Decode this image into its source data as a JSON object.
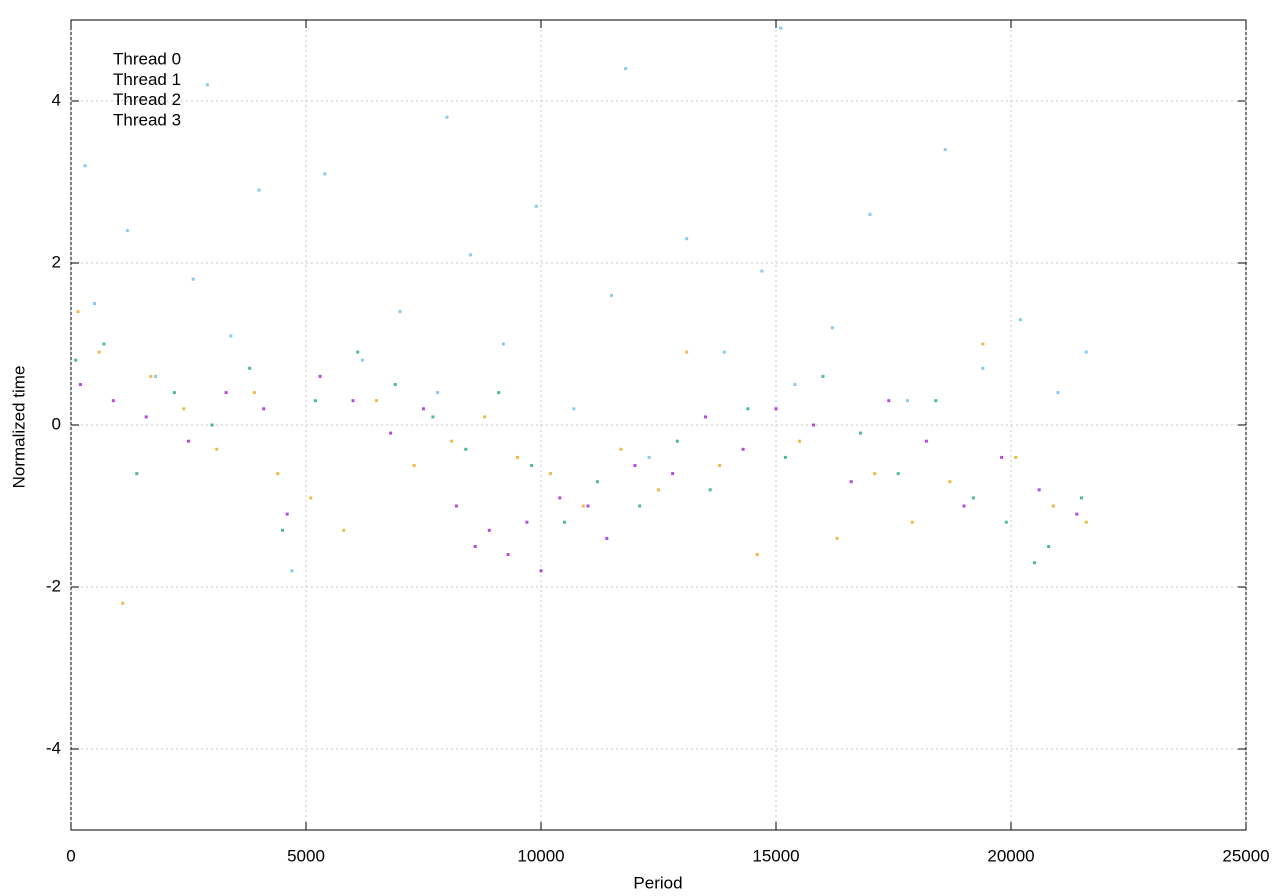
{
  "chart_data": {
    "type": "scatter",
    "x_label": "Period",
    "y_label": "Normalized time",
    "xlim": [
      0,
      25000
    ],
    "ylim": [
      -5,
      5
    ],
    "xticks": [
      0,
      5000,
      10000,
      15000,
      20000,
      25000
    ],
    "yticks": [
      -4,
      -2,
      0,
      2,
      4
    ],
    "grid": true,
    "legend": "top-left",
    "series": [
      {
        "name": "Thread 0",
        "color": "#9400d3",
        "x": [
          200,
          900,
          1600,
          2500,
          3300,
          4100,
          4600,
          5300,
          6000,
          6800,
          7500,
          8200,
          8600,
          8900,
          9300,
          9700,
          10000,
          10400,
          11000,
          11400,
          12000,
          12800,
          13500,
          14300,
          15000,
          15800,
          16600,
          17400,
          18200,
          19000,
          19800,
          20600,
          21400
        ],
        "y": [
          0.5,
          0.3,
          0.1,
          -0.2,
          0.4,
          0.2,
          -1.1,
          0.6,
          0.3,
          -0.1,
          0.2,
          -1.0,
          -1.5,
          -1.3,
          -1.6,
          -1.2,
          -1.8,
          -0.9,
          -1.0,
          -1.4,
          -0.5,
          -0.6,
          0.1,
          -0.3,
          0.2,
          0.0,
          -0.7,
          0.3,
          -0.2,
          -1.0,
          -0.4,
          -0.8,
          -1.1
        ]
      },
      {
        "name": "Thread 1",
        "color": "#009e73",
        "x": [
          100,
          700,
          1400,
          2200,
          3000,
          3800,
          4500,
          5200,
          6100,
          6900,
          7700,
          8400,
          9100,
          9800,
          10500,
          11200,
          12100,
          12900,
          13600,
          14400,
          15200,
          16000,
          16800,
          17600,
          18400,
          19200,
          19900,
          20500,
          20800,
          21500
        ],
        "y": [
          0.8,
          1.0,
          -0.6,
          0.4,
          0.0,
          0.7,
          -1.3,
          0.3,
          0.9,
          0.5,
          0.1,
          -0.3,
          0.4,
          -0.5,
          -1.2,
          -0.7,
          -1.0,
          -0.2,
          -0.8,
          0.2,
          -0.4,
          0.6,
          -0.1,
          -0.6,
          0.3,
          -0.9,
          -1.2,
          -1.7,
          -1.5,
          -0.9
        ]
      },
      {
        "name": "Thread 2",
        "color": "#56b4e9",
        "x": [
          300,
          500,
          1200,
          1800,
          2600,
          3400,
          4000,
          4700,
          5400,
          6200,
          7000,
          7800,
          8500,
          9200,
          9900,
          10700,
          11500,
          12300,
          13100,
          13900,
          14700,
          15400,
          16200,
          17000,
          17800,
          18600,
          19400,
          20200,
          21000,
          21600,
          2900,
          8000,
          15100,
          11800
        ],
        "y": [
          3.2,
          1.5,
          2.4,
          0.6,
          1.8,
          1.1,
          2.9,
          -1.8,
          3.1,
          0.8,
          1.4,
          0.4,
          2.1,
          1.0,
          2.7,
          0.2,
          1.6,
          -0.4,
          2.3,
          0.9,
          1.9,
          0.5,
          1.2,
          2.6,
          0.3,
          3.4,
          0.7,
          1.3,
          0.4,
          0.9,
          4.2,
          3.8,
          4.9,
          4.4
        ]
      },
      {
        "name": "Thread 3",
        "color": "#e69f00",
        "x": [
          150,
          600,
          1100,
          1700,
          2400,
          3100,
          3900,
          4400,
          5100,
          5800,
          6500,
          7300,
          8100,
          8800,
          9500,
          10200,
          10900,
          11700,
          12500,
          13100,
          13800,
          14600,
          15500,
          16300,
          17100,
          17900,
          18700,
          19400,
          20100,
          20900,
          21600
        ],
        "y": [
          1.4,
          0.9,
          -2.2,
          0.6,
          0.2,
          -0.3,
          0.4,
          -0.6,
          -0.9,
          -1.3,
          0.3,
          -0.5,
          -0.2,
          0.1,
          -0.4,
          -0.6,
          -1.0,
          -0.3,
          -0.8,
          0.9,
          -0.5,
          -1.6,
          -0.2,
          -1.4,
          -0.6,
          -1.2,
          -0.7,
          1.0,
          -0.4,
          -1.0,
          -1.2
        ]
      }
    ]
  }
}
